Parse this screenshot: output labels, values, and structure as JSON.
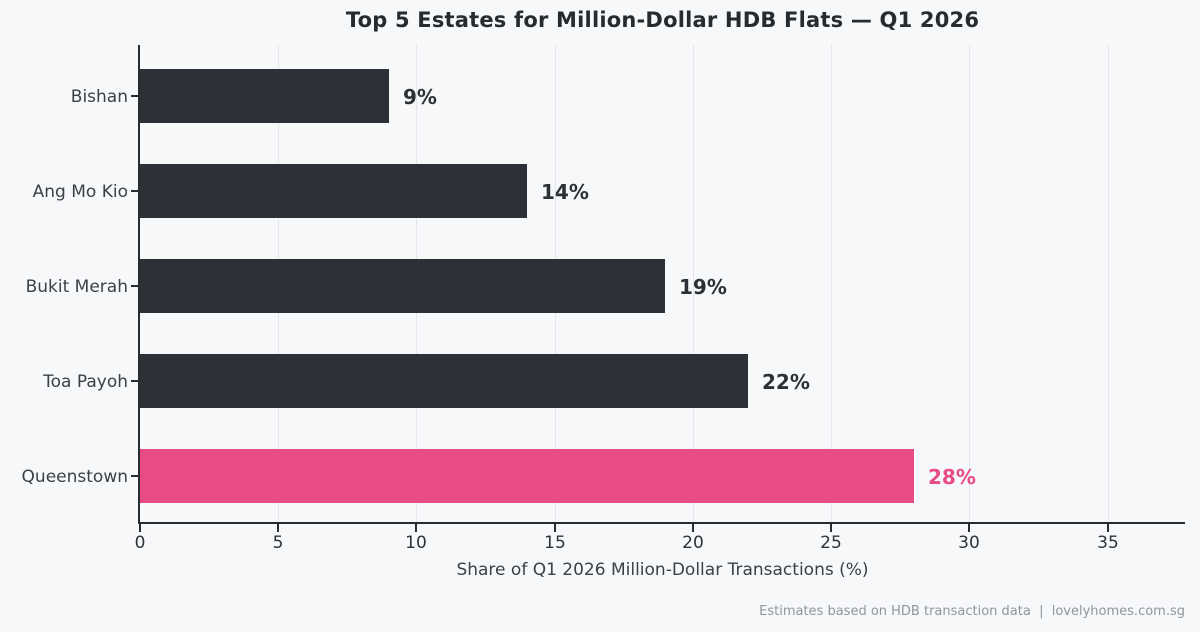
{
  "chart_data": {
    "type": "bar",
    "orientation": "horizontal",
    "title": "Top 5 Estates for Million-Dollar HDB Flats — Q1 2026",
    "xlabel": "Share of Q1 2026 Million-Dollar Transactions (%)",
    "ylabel": "",
    "categories": [
      "Bishan",
      "Ang Mo Kio",
      "Bukit Merah",
      "Toa Payoh",
      "Queenstown"
    ],
    "values": [
      9,
      14,
      19,
      22,
      28
    ],
    "value_labels": [
      "9%",
      "14%",
      "19%",
      "22%",
      "28%"
    ],
    "xticks": [
      0,
      5,
      10,
      15,
      20,
      25,
      30,
      35
    ],
    "xlim": [
      0,
      37.8
    ],
    "grid": true,
    "legend": false,
    "highlight_category": "Queenstown",
    "colors": {
      "bar": "#2b3136",
      "highlight_bar": "#e84b85",
      "background": "#f7f8fa",
      "grid": "#e4e6ea",
      "axis": "#282d31",
      "value_label": "#2b3136",
      "highlight_value_label": "#e84b85"
    }
  },
  "footer": {
    "text": "Estimates based on HDB transaction data  |  lovelyhomes.com.sg"
  }
}
